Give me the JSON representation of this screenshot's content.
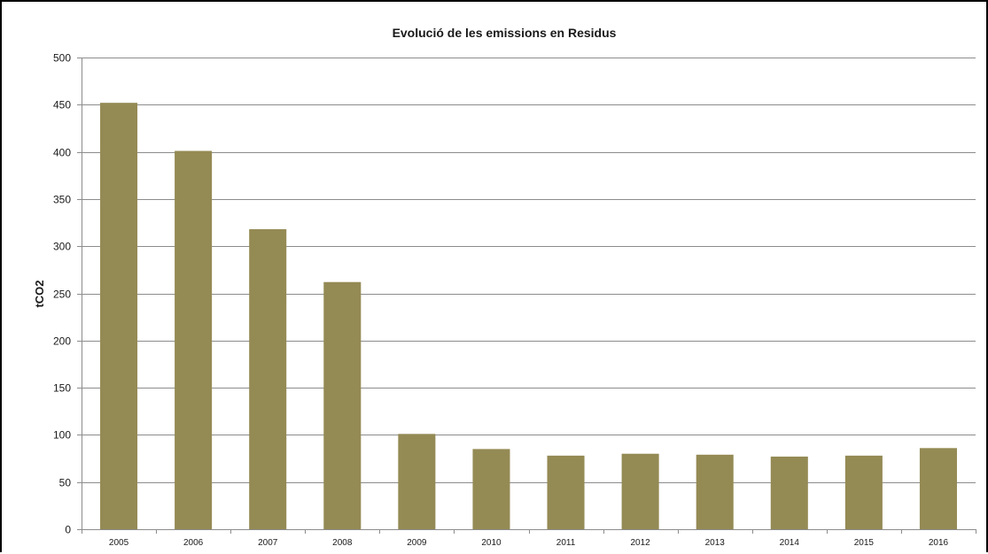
{
  "chart_data": {
    "type": "bar",
    "title": "Evolució de les emissions  en Residus",
    "xlabel": "",
    "ylabel": "tCO2",
    "categories": [
      "2005",
      "2006",
      "2007",
      "2008",
      "2009",
      "2010",
      "2011",
      "2012",
      "2013",
      "2014",
      "2015",
      "2016"
    ],
    "values": [
      452,
      401,
      318,
      262,
      101,
      85,
      78,
      80,
      79,
      77,
      78,
      86
    ],
    "ylim": [
      0,
      500
    ],
    "yticks": [
      0,
      50,
      100,
      150,
      200,
      250,
      300,
      350,
      400,
      450,
      500
    ],
    "grid": true,
    "legend": "none",
    "bar_color": "#948a54",
    "grid_color": "#8c8c8c"
  }
}
